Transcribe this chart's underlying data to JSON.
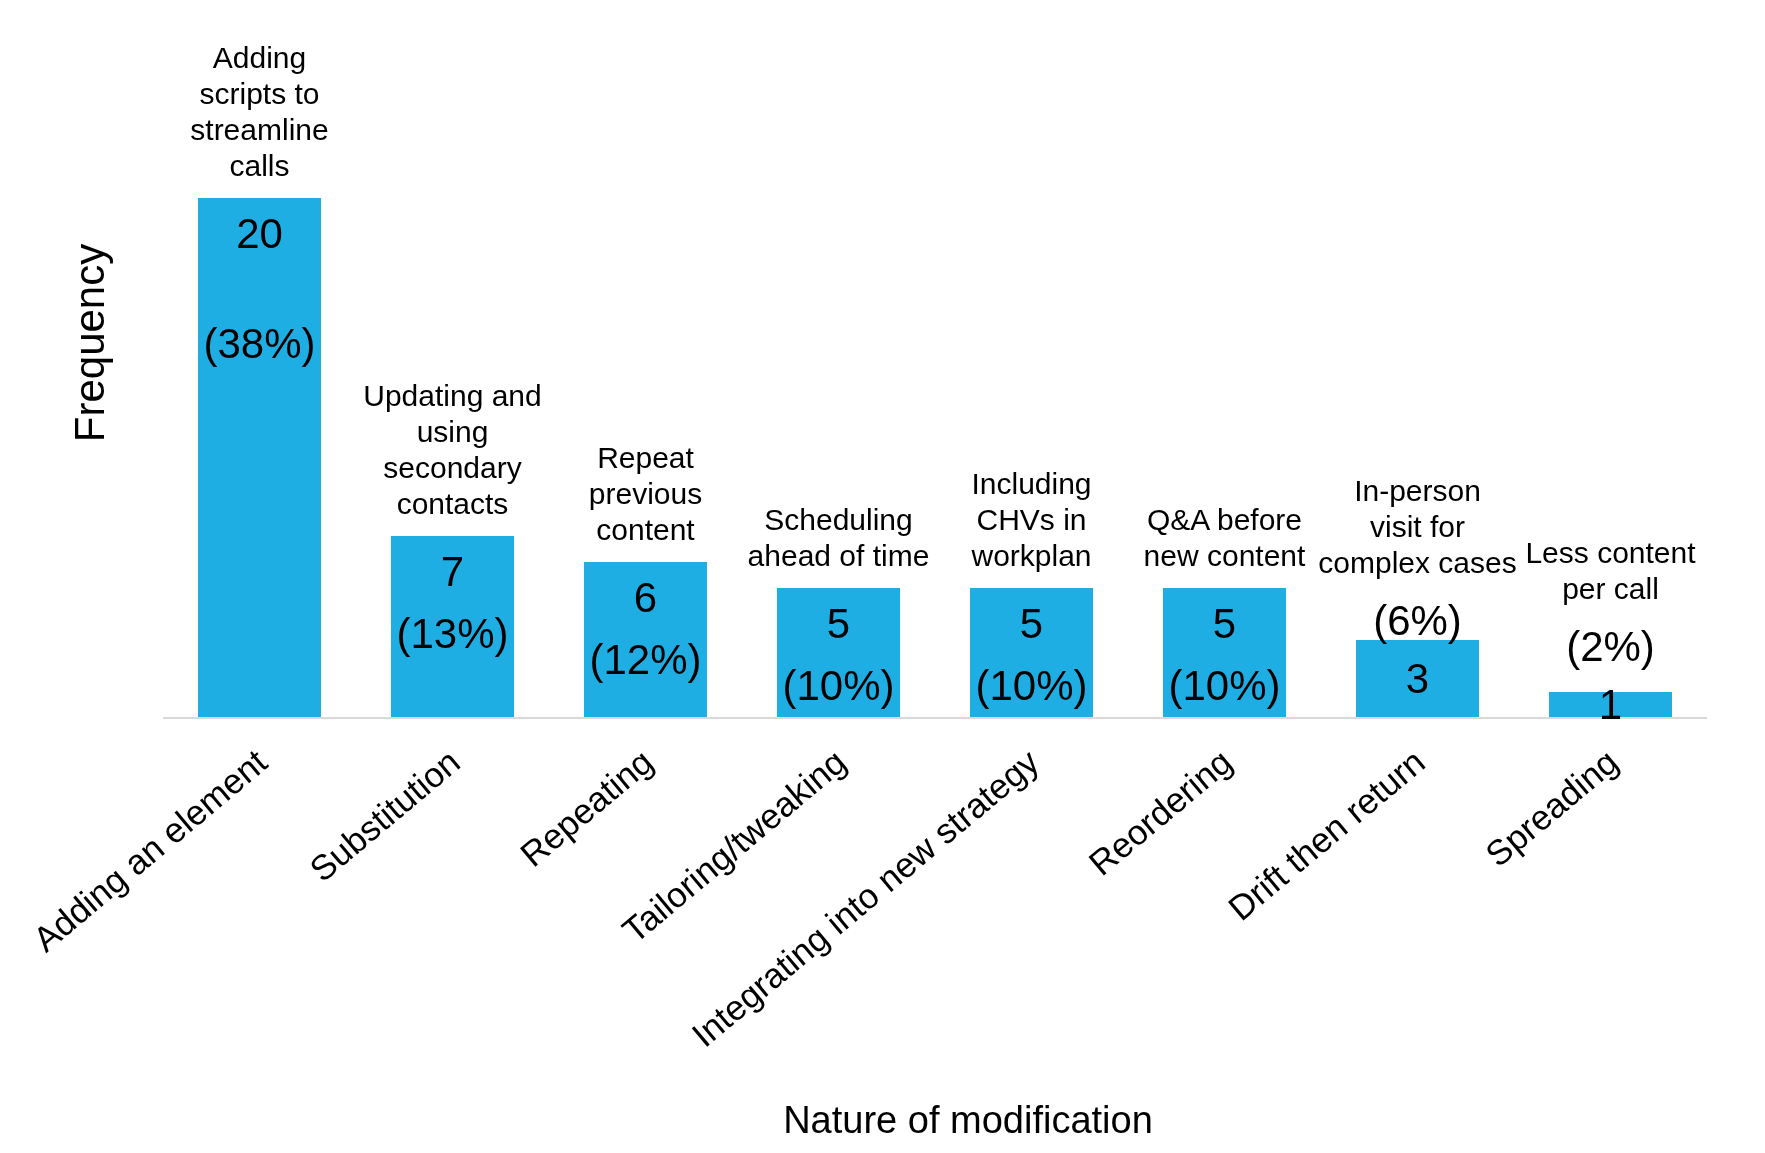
{
  "chart_data": {
    "type": "bar",
    "xlabel": "Nature of modification",
    "ylabel": "Frequency",
    "categories": [
      "Adding an element",
      "Substitution",
      "Repeating",
      "Tailoring/tweaking",
      "Integrating into new strategy",
      "Reordering",
      "Drift then return",
      "Spreading"
    ],
    "values": [
      20,
      7,
      6,
      5,
      5,
      5,
      3,
      1
    ],
    "color": "#1eaee4",
    "value_labels": [
      "20\n(38%)",
      "7\n(13%)",
      "6\n(12%)",
      "5\n(10%)",
      "5\n(10%)",
      "5\n(10%)",
      "(6%)\n3",
      "(2%)\n1"
    ],
    "annotations": [
      {
        "text": "Adding scripts to streamline calls",
        "x": "Adding an element",
        "y": 20
      },
      {
        "text": "Updating and using secondary contacts",
        "x": "Substitution",
        "y": 7
      },
      {
        "text": "Repeat previous content",
        "x": "Repeating",
        "y": 6
      },
      {
        "text": "Scheduling ahead of time",
        "x": "Tailoring/tweaking",
        "y": 5
      },
      {
        "text": "Including CHVs in workplan",
        "x": "Integrating into new strategy",
        "y": 5
      },
      {
        "text": "Q&A before new content",
        "x": "Reordering",
        "y": 5
      },
      {
        "text": "In-person visit for complex cases",
        "x": "Drift then return",
        "y": 3
      },
      {
        "text": "Less content per call",
        "x": "Spreading",
        "y": 1
      }
    ],
    "legend": false
  }
}
